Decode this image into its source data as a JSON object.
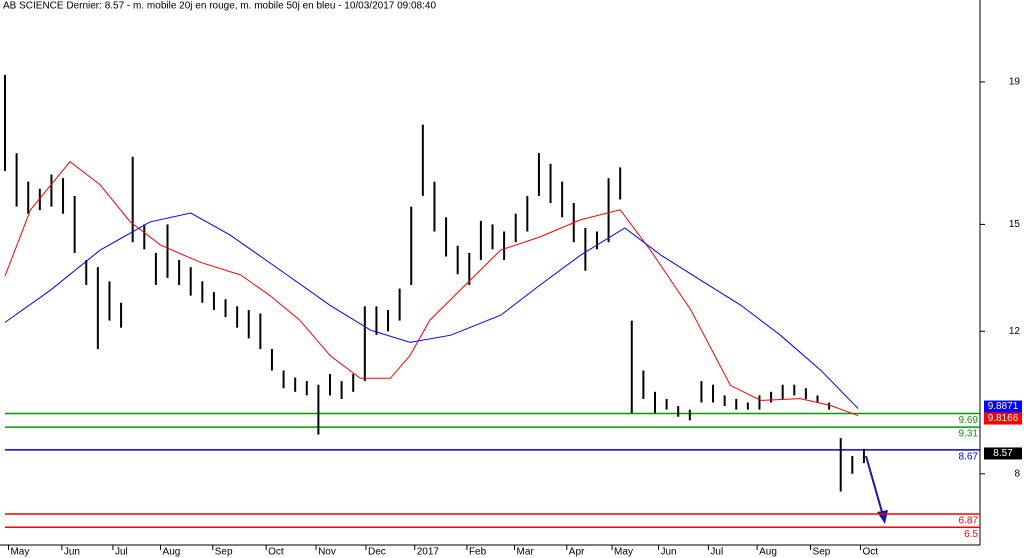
{
  "chart_data": {
    "type": "ohlc",
    "title": "AB SCIENCE Dernier: 8.57 - m. mobile 20j en rouge, m. mobile 50j en bleu - 10/03/2017 09:08:40",
    "xlim": [
      0,
      84
    ],
    "ylim": [
      6,
      21.3
    ],
    "xticks": [
      {
        "value": 0.3,
        "label": "May"
      },
      {
        "value": 4.9,
        "label": "Jun"
      },
      {
        "value": 9.3,
        "label": "Jul"
      },
      {
        "value": 13.4,
        "label": "Aug"
      },
      {
        "value": 17.9,
        "label": "Sep"
      },
      {
        "value": 22.5,
        "label": "Oct"
      },
      {
        "value": 26.8,
        "label": "Nov"
      },
      {
        "value": 31.1,
        "label": "Dec"
      },
      {
        "value": 35.3,
        "label": "2017"
      },
      {
        "value": 39.8,
        "label": "Feb"
      },
      {
        "value": 43.9,
        "label": "Mar"
      },
      {
        "value": 48.4,
        "label": "Apr"
      },
      {
        "value": 52.3,
        "label": "May"
      },
      {
        "value": 56.3,
        "label": "Jun"
      },
      {
        "value": 60.6,
        "label": "Jul"
      },
      {
        "value": 64.8,
        "label": "Aug"
      },
      {
        "value": 69.4,
        "label": "Sep"
      },
      {
        "value": 73.7,
        "label": "Oct"
      }
    ],
    "yticks": [
      8,
      12,
      15,
      19
    ],
    "bars": {
      "color": "#000000",
      "x": [
        0,
        1,
        2,
        3,
        4,
        5,
        6,
        7,
        8,
        9,
        10,
        11,
        12,
        13,
        14,
        15,
        16,
        17,
        18,
        19,
        20,
        21,
        22,
        23,
        24,
        25,
        26,
        27,
        28,
        29,
        30,
        31,
        32,
        33,
        34,
        35,
        36,
        37,
        38,
        39,
        40,
        41,
        42,
        43,
        44,
        45,
        46,
        47,
        48,
        49,
        50,
        51,
        52,
        53,
        54,
        55,
        56,
        57,
        58,
        59,
        60,
        61,
        62,
        63,
        64,
        65,
        66,
        67,
        68,
        69,
        70,
        71,
        72,
        73,
        74
      ],
      "high": [
        19.2,
        17.0,
        16.2,
        16.0,
        16.4,
        16.3,
        15.8,
        14.0,
        13.8,
        13.4,
        12.8,
        16.9,
        15.0,
        14.2,
        15.0,
        14.0,
        13.8,
        13.4,
        13.1,
        12.9,
        12.7,
        12.6,
        12.5,
        11.5,
        10.9,
        10.7,
        10.6,
        10.5,
        10.8,
        10.6,
        10.8,
        12.7,
        12.7,
        12.6,
        13.2,
        15.5,
        17.8,
        16.2,
        15.2,
        14.4,
        14.2,
        15.1,
        15.0,
        14.8,
        15.3,
        15.8,
        17.0,
        16.7,
        16.2,
        15.6,
        14.9,
        14.8,
        16.3,
        16.6,
        12.3,
        10.9,
        10.3,
        10.1,
        9.9,
        9.8,
        10.6,
        10.5,
        10.2,
        10.1,
        10.0,
        10.2,
        10.3,
        10.5,
        10.5,
        10.4,
        10.2,
        10.0,
        9.0,
        8.5,
        8.7
      ],
      "low": [
        16.5,
        15.5,
        15.3,
        15.4,
        15.5,
        15.3,
        14.2,
        13.3,
        11.5,
        12.3,
        12.1,
        14.5,
        14.3,
        13.3,
        13.5,
        13.3,
        13.0,
        12.8,
        12.6,
        12.4,
        12.1,
        11.8,
        11.5,
        10.9,
        10.4,
        10.3,
        10.2,
        9.1,
        10.2,
        10.1,
        10.3,
        10.6,
        11.9,
        12.0,
        12.3,
        13.3,
        15.8,
        14.8,
        14.1,
        13.6,
        13.3,
        14.0,
        14.3,
        14.0,
        14.5,
        14.8,
        15.8,
        15.6,
        15.2,
        14.5,
        13.7,
        14.3,
        14.5,
        15.7,
        9.7,
        10.1,
        9.7,
        9.8,
        9.6,
        9.5,
        10.0,
        10.0,
        9.9,
        9.8,
        9.8,
        9.8,
        10.0,
        10.1,
        10.2,
        10.1,
        10.0,
        9.8,
        7.5,
        8.0,
        8.3
      ]
    },
    "series": [
      {
        "color": "#ff0000",
        "x": [
          0,
          2.2,
          5.6,
          8.2,
          10.8,
          13.4,
          16.8,
          20.3,
          22.8,
          25.4,
          28,
          30.6,
          33.2,
          34.9,
          36.6,
          40.1,
          42.7,
          46.1,
          49.6,
          53,
          55.6,
          59.1,
          62.5,
          65.1,
          68.5,
          71.1,
          73.5
        ],
        "values": [
          13.55,
          15.41,
          16.76,
          16.11,
          15.07,
          14.42,
          13.94,
          13.58,
          13.01,
          12.31,
          11.32,
          10.68,
          10.68,
          11.32,
          12.31,
          13.44,
          14.28,
          14.65,
          15.13,
          15.41,
          14.28,
          12.59,
          10.48,
          10.06,
          10.11,
          9.92,
          9.63
        ]
      },
      {
        "color": "#0000ff",
        "x": [
          0,
          3.9,
          8.2,
          12.5,
          16,
          19.4,
          23.7,
          28,
          31.5,
          34.9,
          38.4,
          42.7,
          46.1,
          49.6,
          53.4,
          56.5,
          59.9,
          63.4,
          66.8,
          70.3,
          73.5
        ],
        "values": [
          12.25,
          13.15,
          14.28,
          15.07,
          15.32,
          14.7,
          13.72,
          12.73,
          12.03,
          11.69,
          11.89,
          12.45,
          13.3,
          14.14,
          14.9,
          14.14,
          13.44,
          12.73,
          11.89,
          10.9,
          9.83
        ]
      }
    ],
    "levels": [
      {
        "value": 9.69,
        "color": "#009900"
      },
      {
        "value": 9.31,
        "color": "#009900"
      },
      {
        "value": 8.67,
        "color": "#0000ff"
      },
      {
        "value": 6.87,
        "color": "#ff0000"
      },
      {
        "value": 6.5,
        "color": "#ff0000"
      }
    ],
    "markers": [
      {
        "value": 9.8871,
        "color": "#0000ff"
      },
      {
        "value": 9.8166,
        "color": "#ff0000"
      },
      {
        "value": 8.57,
        "color": "#000000"
      }
    ]
  }
}
